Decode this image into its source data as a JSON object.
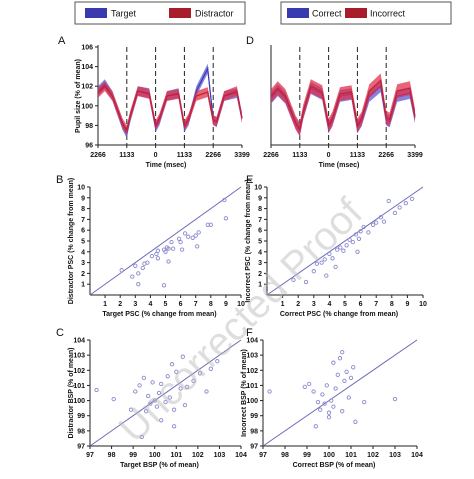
{
  "watermark": "Uncorrected Proof",
  "colors": {
    "blue": "#3a3ab0",
    "red": "#c0203a",
    "band_blue": "#5a5ad8",
    "band_red": "#e03048",
    "point": "#8a8ad0",
    "line": "#6a6ab8"
  },
  "legends": [
    {
      "entries": [
        {
          "label": "Target",
          "color": "#3a3ab0"
        },
        {
          "label": "Distractor",
          "color": "#a81c2c"
        }
      ]
    },
    {
      "entries": [
        {
          "label": "Correct",
          "color": "#3a3ab0"
        },
        {
          "label": "Incorrect",
          "color": "#a81c2c"
        }
      ]
    }
  ],
  "chart_data": [
    {
      "panel": "A",
      "type": "line",
      "xlabel": "Time (msec)",
      "ylabel": "Pupil size (% of mean)",
      "xlim": [
        -2266,
        3399
      ],
      "ylim": [
        96,
        106
      ],
      "x_ticks": [
        {
          "value": -2266,
          "label": "2266"
        },
        {
          "value": -1133,
          "label": "1133"
        },
        {
          "value": 0,
          "label": "0"
        },
        {
          "value": 1133,
          "label": "1133"
        },
        {
          "value": 2266,
          "label": "2266"
        },
        {
          "value": 3399,
          "label": "3399"
        }
      ],
      "y_ticks": [
        96,
        98,
        100,
        102,
        104,
        106
      ],
      "dashed_x": [
        -1133,
        0,
        1133,
        2266
      ],
      "series": [
        {
          "color": "blue",
          "band": 0.5,
          "x": [
            -2266,
            -2000,
            -1700,
            -1300,
            -1133,
            -1000,
            -700,
            -250,
            0,
            150,
            450,
            900,
            1133,
            1300,
            1600,
            2050,
            2266,
            2400,
            2700,
            3200,
            3399
          ],
          "y": [
            101.5,
            102.2,
            101.0,
            98.0,
            97.2,
            98.8,
            101.5,
            101.3,
            97.8,
            98.5,
            101.0,
            101.3,
            97.8,
            98.5,
            101.5,
            103.8,
            98.6,
            98.3,
            101.0,
            101.3,
            98.8
          ]
        },
        {
          "color": "red",
          "band": 0.5,
          "x": [
            -2266,
            -2000,
            -1700,
            -1300,
            -1133,
            -1000,
            -700,
            -250,
            0,
            150,
            450,
            900,
            1133,
            1300,
            1600,
            2050,
            2266,
            2400,
            2700,
            3200,
            3399
          ],
          "y": [
            101.3,
            102.0,
            101.0,
            98.2,
            97.5,
            99.0,
            101.5,
            101.2,
            98.0,
            98.7,
            101.0,
            101.2,
            98.0,
            98.7,
            101.0,
            101.4,
            98.5,
            98.4,
            101.0,
            101.5,
            98.7
          ]
        }
      ]
    },
    {
      "panel": "D",
      "type": "line",
      "xlabel": "Time (msec)",
      "ylabel": "",
      "xlim": [
        -2266,
        3399
      ],
      "ylim": [
        96,
        106
      ],
      "x_ticks": [
        {
          "value": -2266,
          "label": "2266"
        },
        {
          "value": -1133,
          "label": "1133"
        },
        {
          "value": 0,
          "label": "0"
        },
        {
          "value": 1133,
          "label": "1133"
        },
        {
          "value": 2266,
          "label": "2266"
        },
        {
          "value": 3399,
          "label": "3399"
        }
      ],
      "y_ticks": [],
      "dashed_x": [
        -1133,
        0,
        1133,
        2266
      ],
      "series": [
        {
          "color": "blue",
          "band": 0.6,
          "x": [
            -2266,
            -2000,
            -1700,
            -1300,
            -1133,
            -1000,
            -700,
            -250,
            0,
            150,
            450,
            900,
            1133,
            1300,
            1600,
            2050,
            2266,
            2400,
            2700,
            3200,
            3399
          ],
          "y": [
            100.8,
            101.6,
            100.8,
            98.2,
            97.5,
            99.2,
            101.8,
            101.2,
            97.8,
            98.5,
            101.0,
            101.2,
            97.8,
            98.5,
            101.0,
            102.0,
            98.6,
            98.4,
            101.0,
            101.3,
            98.8
          ]
        },
        {
          "color": "red",
          "band": 0.7,
          "x": [
            -2266,
            -2000,
            -1700,
            -1300,
            -1133,
            -1000,
            -700,
            -250,
            0,
            150,
            450,
            900,
            1133,
            1300,
            1600,
            2050,
            2266,
            2400,
            2700,
            3200,
            3399
          ],
          "y": [
            101.0,
            101.8,
            101.0,
            98.3,
            97.6,
            99.4,
            102.0,
            101.4,
            98.0,
            98.7,
            101.2,
            101.4,
            98.0,
            98.7,
            101.5,
            102.6,
            98.8,
            98.6,
            101.5,
            101.8,
            99.0
          ]
        }
      ]
    },
    {
      "panel": "B",
      "type": "scatter",
      "xlabel": "Target PSC (% change from mean)",
      "ylabel": "Distractor PSC (% change from mean)",
      "xlim": [
        0,
        10
      ],
      "ylim": [
        0,
        10
      ],
      "x_ticks": [
        1,
        2,
        3,
        4,
        5,
        6,
        7,
        8,
        9,
        10
      ],
      "y_ticks": [
        1,
        2,
        3,
        4,
        5,
        6,
        7,
        8,
        9,
        10
      ],
      "identity_line": true,
      "points": [
        [
          2.1,
          2.3
        ],
        [
          2.8,
          1.7
        ],
        [
          3.0,
          2.7
        ],
        [
          3.2,
          1.0
        ],
        [
          3.2,
          2.0
        ],
        [
          3.5,
          2.5
        ],
        [
          3.6,
          2.9
        ],
        [
          3.8,
          3.0
        ],
        [
          4.1,
          3.6
        ],
        [
          4.4,
          3.8
        ],
        [
          4.5,
          3.4
        ],
        [
          4.5,
          4.1
        ],
        [
          4.9,
          4.2
        ],
        [
          5.0,
          4.0
        ],
        [
          5.1,
          4.4
        ],
        [
          5.2,
          3.1
        ],
        [
          5.2,
          4.3
        ],
        [
          5.4,
          4.9
        ],
        [
          5.5,
          4.3
        ],
        [
          5.9,
          5.2
        ],
        [
          6.0,
          4.9
        ],
        [
          6.1,
          4.2
        ],
        [
          6.3,
          5.7
        ],
        [
          6.5,
          5.4
        ],
        [
          6.8,
          5.3
        ],
        [
          7.0,
          5.5
        ],
        [
          7.1,
          4.5
        ],
        [
          7.2,
          5.8
        ],
        [
          7.8,
          6.5
        ],
        [
          8.0,
          6.5
        ],
        [
          8.9,
          8.8
        ],
        [
          9.0,
          7.1
        ],
        [
          4.9,
          0.9
        ]
      ]
    },
    {
      "panel": "E",
      "type": "scatter",
      "xlabel": "Correct PSC (% change from mean)",
      "ylabel": "Incorrect PSC (% change from mean)",
      "xlim": [
        0,
        10
      ],
      "ylim": [
        0,
        10
      ],
      "x_ticks": [
        1,
        2,
        3,
        4,
        5,
        6,
        7,
        8,
        9,
        10
      ],
      "y_ticks": [
        1,
        2,
        3,
        4,
        5,
        6,
        7,
        8,
        9,
        10
      ],
      "identity_line": true,
      "points": [
        [
          1.7,
          1.4
        ],
        [
          2.5,
          1.2
        ],
        [
          3.0,
          2.2
        ],
        [
          3.2,
          2.9
        ],
        [
          3.5,
          3.0
        ],
        [
          3.7,
          3.3
        ],
        [
          3.8,
          1.8
        ],
        [
          4.0,
          3.8
        ],
        [
          4.2,
          3.4
        ],
        [
          4.5,
          4.2
        ],
        [
          4.7,
          4.4
        ],
        [
          4.9,
          4.1
        ],
        [
          5.1,
          4.6
        ],
        [
          5.3,
          5.1
        ],
        [
          5.5,
          4.9
        ],
        [
          5.7,
          5.6
        ],
        [
          5.9,
          5.2
        ],
        [
          6.0,
          5.9
        ],
        [
          6.2,
          6.3
        ],
        [
          6.5,
          5.8
        ],
        [
          6.8,
          6.5
        ],
        [
          7.0,
          6.7
        ],
        [
          7.3,
          7.2
        ],
        [
          7.5,
          6.8
        ],
        [
          7.8,
          8.7
        ],
        [
          8.2,
          7.6
        ],
        [
          8.5,
          8.1
        ],
        [
          8.9,
          8.5
        ],
        [
          9.3,
          8.9
        ],
        [
          4.4,
          2.6
        ],
        [
          5.8,
          4.0
        ]
      ]
    },
    {
      "panel": "C",
      "type": "scatter",
      "xlabel": "Target BSP (% of mean)",
      "ylabel": "Distractor BSP (% of mean)",
      "xlim": [
        97,
        104
      ],
      "ylim": [
        97,
        104
      ],
      "x_ticks": [
        97,
        98,
        99,
        100,
        101,
        102,
        103,
        104
      ],
      "y_ticks": [
        97,
        98,
        99,
        100,
        101,
        102,
        103,
        104
      ],
      "identity_line": true,
      "points": [
        [
          97.3,
          100.7
        ],
        [
          98.1,
          100.1
        ],
        [
          98.9,
          99.4
        ],
        [
          99.1,
          100.6
        ],
        [
          99.3,
          101.0
        ],
        [
          99.5,
          101.5
        ],
        [
          99.6,
          99.3
        ],
        [
          99.7,
          100.3
        ],
        [
          99.8,
          99.8
        ],
        [
          99.9,
          101.2
        ],
        [
          100.0,
          100.0
        ],
        [
          100.1,
          99.6
        ],
        [
          100.2,
          100.5
        ],
        [
          100.3,
          98.7
        ],
        [
          100.3,
          101.1
        ],
        [
          100.5,
          99.9
        ],
        [
          100.6,
          101.6
        ],
        [
          100.7,
          100.2
        ],
        [
          100.8,
          102.4
        ],
        [
          100.9,
          99.4
        ],
        [
          101.0,
          101.9
        ],
        [
          101.2,
          100.8
        ],
        [
          101.4,
          99.7
        ],
        [
          101.5,
          100.9
        ],
        [
          101.8,
          101.3
        ],
        [
          102.1,
          101.8
        ],
        [
          102.4,
          100.6
        ],
        [
          102.6,
          102.1
        ],
        [
          102.9,
          102.6
        ],
        [
          99.4,
          97.6
        ],
        [
          100.9,
          98.3
        ],
        [
          101.3,
          102.9
        ]
      ]
    },
    {
      "panel": "F",
      "type": "scatter",
      "xlabel": "Correct BSP (% of mean)",
      "ylabel": "Incorrect BSP (% of mean)",
      "xlim": [
        97,
        104
      ],
      "ylim": [
        97,
        104
      ],
      "x_ticks": [
        97,
        98,
        99,
        100,
        101,
        102,
        103,
        104
      ],
      "y_ticks": [
        97,
        98,
        99,
        100,
        101,
        102,
        103,
        104
      ],
      "identity_line": true,
      "points": [
        [
          97.3,
          100.6
        ],
        [
          98.9,
          100.9
        ],
        [
          99.1,
          101.1
        ],
        [
          99.3,
          100.6
        ],
        [
          99.5,
          99.9
        ],
        [
          99.6,
          99.4
        ],
        [
          99.7,
          100.4
        ],
        [
          99.8,
          99.8
        ],
        [
          99.9,
          101.0
        ],
        [
          100.0,
          98.9
        ],
        [
          100.1,
          100.0
        ],
        [
          100.2,
          99.6
        ],
        [
          100.2,
          102.5
        ],
        [
          100.3,
          100.8
        ],
        [
          100.4,
          101.7
        ],
        [
          100.5,
          102.8
        ],
        [
          100.6,
          103.2
        ],
        [
          100.6,
          99.3
        ],
        [
          100.7,
          101.3
        ],
        [
          100.8,
          101.9
        ],
        [
          100.9,
          100.2
        ],
        [
          101.0,
          101.5
        ],
        [
          101.1,
          102.2
        ],
        [
          101.2,
          98.6
        ],
        [
          101.6,
          99.9
        ],
        [
          103.0,
          100.1
        ],
        [
          99.4,
          98.3
        ],
        [
          100.0,
          99.2
        ]
      ]
    }
  ]
}
